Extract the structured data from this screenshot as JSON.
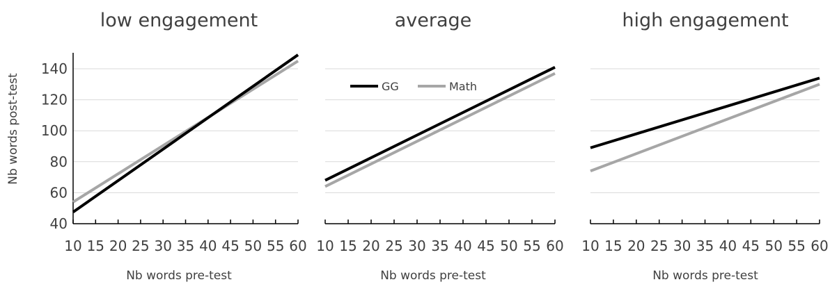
{
  "chart_data": [
    {
      "type": "line",
      "title": "low engagement",
      "xlabel": "Nb words pre-test",
      "ylabel": "Nb words post-test",
      "x_ticks": [
        10,
        15,
        20,
        25,
        30,
        35,
        40,
        45,
        50,
        55,
        60
      ],
      "y_ticks": [
        40,
        60,
        80,
        100,
        120,
        140
      ],
      "ylim": [
        40,
        150
      ],
      "grid": true,
      "series": [
        {
          "name": "GG",
          "color": "#000000",
          "x": [
            10,
            60
          ],
          "y": [
            47.5,
            149
          ]
        },
        {
          "name": "Math",
          "color": "#a6a6a6",
          "x": [
            10,
            60
          ],
          "y": [
            54,
            145
          ]
        }
      ]
    },
    {
      "type": "line",
      "title": "average",
      "xlabel": "Nb words pre-test",
      "x_ticks": [
        10,
        15,
        20,
        25,
        30,
        35,
        40,
        45,
        50,
        55,
        60
      ],
      "ylim": [
        40,
        150
      ],
      "grid": true,
      "legend": "top-left",
      "series": [
        {
          "name": "GG",
          "color": "#000000",
          "x": [
            10,
            60
          ],
          "y": [
            68,
            141
          ]
        },
        {
          "name": "Math",
          "color": "#a6a6a6",
          "x": [
            10,
            60
          ],
          "y": [
            64,
            137
          ]
        }
      ]
    },
    {
      "type": "line",
      "title": "high engagement",
      "xlabel": "Nb words pre-test",
      "x_ticks": [
        10,
        15,
        20,
        25,
        30,
        35,
        40,
        45,
        50,
        55,
        60
      ],
      "ylim": [
        40,
        150
      ],
      "grid": true,
      "series": [
        {
          "name": "GG",
          "color": "#000000",
          "x": [
            10,
            60
          ],
          "y": [
            89,
            134
          ]
        },
        {
          "name": "Math",
          "color": "#a6a6a6",
          "x": [
            10,
            60
          ],
          "y": [
            74,
            130
          ]
        }
      ]
    }
  ]
}
